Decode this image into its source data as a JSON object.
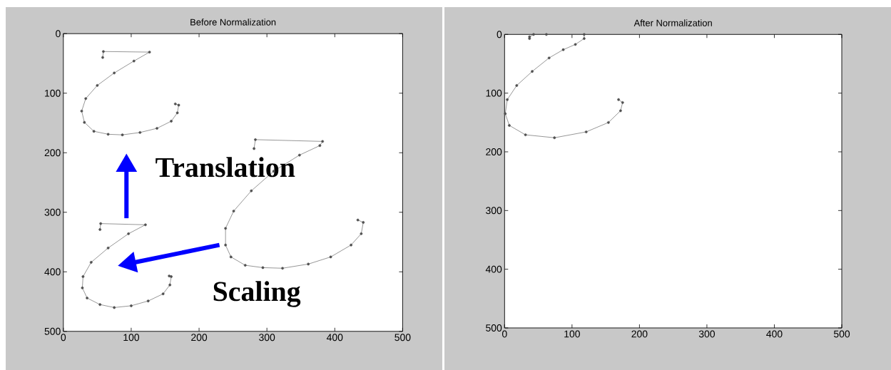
{
  "chart_data": [
    {
      "type": "line",
      "title": "Before Normalization",
      "xlim": [
        0,
        500
      ],
      "ylim": [
        500,
        0
      ],
      "xticks": [
        0,
        100,
        200,
        300,
        400,
        500
      ],
      "yticks": [
        0,
        100,
        200,
        300,
        400,
        500
      ],
      "marker": "circle",
      "annotations": [
        "Translation",
        "Scaling"
      ],
      "series": [
        {
          "color": "#505050",
          "x": [
            58,
            59,
            127,
            104,
            75,
            50,
            33,
            27,
            31,
            45,
            66,
            87,
            113,
            138,
            159,
            168,
            170,
            165
          ],
          "values": [
            40,
            30,
            31,
            46,
            66,
            87,
            109,
            130,
            149,
            164,
            169,
            170,
            166,
            159,
            147,
            133,
            120,
            118
          ]
        },
        {
          "color": "#505050",
          "x": [
            281,
            283,
            382,
            378,
            348,
            310,
            277,
            251,
            239,
            239,
            247,
            268,
            294,
            323,
            361,
            394,
            424,
            439,
            442,
            434
          ],
          "values": [
            193,
            178,
            181,
            188,
            204,
            231,
            264,
            298,
            327,
            355,
            375,
            389,
            393,
            394,
            387,
            375,
            355,
            336,
            317,
            313
          ]
        },
        {
          "color": "#505050",
          "x": [
            54,
            55,
            121,
            96,
            66,
            41,
            29,
            28,
            35,
            54,
            75,
            100,
            125,
            147,
            157,
            159,
            156
          ],
          "values": [
            329,
            319,
            321,
            336,
            360,
            384,
            408,
            427,
            444,
            455,
            460,
            457,
            449,
            437,
            422,
            408,
            407
          ]
        }
      ]
    },
    {
      "type": "line",
      "title": "After Normalization",
      "xlim": [
        0,
        500
      ],
      "ylim": [
        500,
        0
      ],
      "xticks": [
        0,
        100,
        200,
        300,
        400,
        500
      ],
      "yticks": [
        0,
        100,
        200,
        300,
        400,
        500
      ],
      "marker": "circle",
      "series": [
        {
          "color": "#505050",
          "x": [
            37,
            37,
            43,
            62,
            118,
            118,
            105,
            87,
            66,
            41,
            18,
            4,
            1,
            7,
            31,
            74,
            121,
            154,
            172,
            175,
            169
          ],
          "values": [
            7,
            4,
            0,
            0,
            0,
            7,
            17,
            26,
            40,
            63,
            87,
            111,
            135,
            155,
            171,
            176,
            166,
            150,
            130,
            116,
            111
          ]
        }
      ]
    }
  ]
}
